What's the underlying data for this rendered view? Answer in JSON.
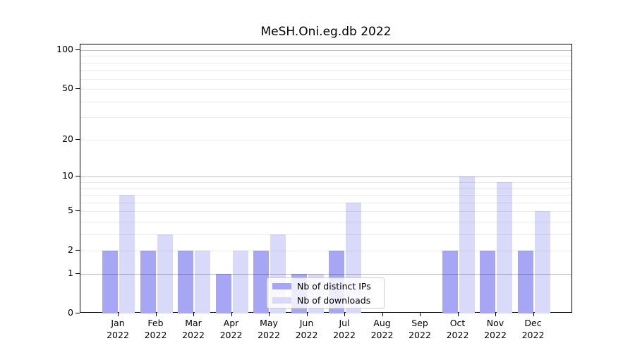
{
  "chart_data": {
    "type": "bar",
    "title": "MeSH.Oni.eg.db 2022",
    "x_categories": [
      "Jan",
      "Feb",
      "Mar",
      "Apr",
      "May",
      "Jun",
      "Jul",
      "Aug",
      "Sep",
      "Oct",
      "Nov",
      "Dec"
    ],
    "x_sublabel": "2022",
    "series": [
      {
        "name": "Nb of distinct IPs",
        "color": "#a6a6f4",
        "values": [
          2,
          2,
          2,
          1,
          2,
          1,
          2,
          0,
          0,
          2,
          2,
          2
        ]
      },
      {
        "name": "Nb of downloads",
        "color": "#d9d9f9",
        "values": [
          7,
          3,
          2,
          2,
          3,
          1,
          6,
          0,
          0,
          10,
          9,
          5
        ]
      }
    ],
    "y_scale": "log1p",
    "y_ticks": [
      0,
      1,
      2,
      5,
      10,
      20,
      50,
      100
    ],
    "y_major_gridlines": [
      1,
      10,
      100
    ],
    "y_minor_gridlines": [
      2,
      3,
      4,
      5,
      6,
      7,
      8,
      9,
      20,
      30,
      40,
      50,
      60,
      70,
      80,
      90
    ],
    "ylim": [
      0,
      110
    ],
    "grid": true,
    "legend_position": "lower right inside"
  },
  "colors": {
    "major_grid": "rgba(0,0,0,0.25)",
    "minor_grid": "rgba(0,0,0,0.08)",
    "spine": "#000000",
    "text": "#000000",
    "legend_border": "#cccccc",
    "legend_bg": "rgba(255,255,255,0.8)"
  }
}
